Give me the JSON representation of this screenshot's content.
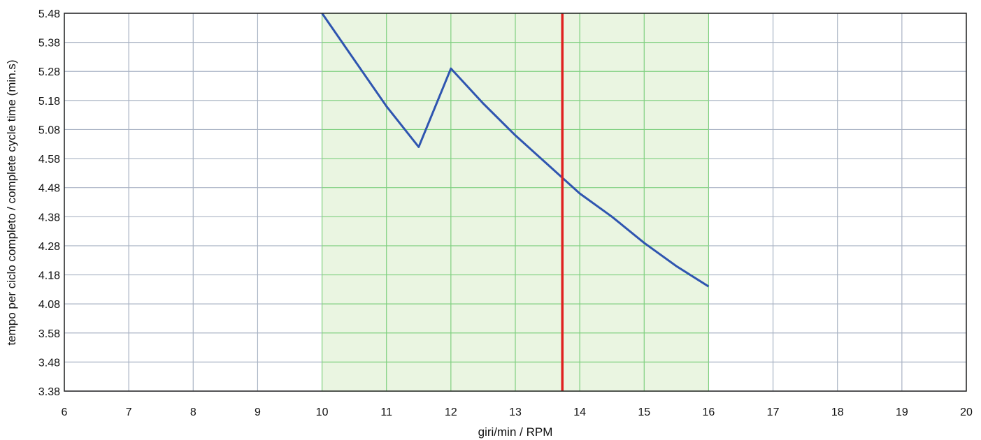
{
  "chart_data": {
    "type": "line",
    "title": "",
    "xlabel": "giri/min / RPM",
    "ylabel": "tempo per ciclo completo / complete cycle time (min.s)",
    "xlim": [
      6,
      20
    ],
    "x_ticks": [
      "6",
      "7",
      "8",
      "9",
      "10",
      "11",
      "12",
      "13",
      "14",
      "15",
      "16",
      "17",
      "18",
      "19",
      "20"
    ],
    "y_ticks": [
      "3.38",
      "3.48",
      "3.58",
      "4.08",
      "4.18",
      "4.28",
      "4.38",
      "4.48",
      "4.58",
      "5.08",
      "5.18",
      "5.28",
      "5.38",
      "5.48"
    ],
    "grid": true,
    "highlight_band": {
      "x_from": 10,
      "x_to": 16,
      "color": "#eaf5e1",
      "grid_color": "#7fcf7f"
    },
    "marker_line": {
      "x": 13.73,
      "color": "#e02020"
    },
    "series": [
      {
        "color": "#2f55b0",
        "points": [
          {
            "x": 10.0,
            "y": 5.48
          },
          {
            "x": 10.5,
            "y": 5.315
          },
          {
            "x": 11.0,
            "y": 5.16
          },
          {
            "x": 11.5,
            "y": 5.02
          },
          {
            "x": 12.0,
            "y": 4.89
          },
          {
            "x": 12.5,
            "y": 4.77
          },
          {
            "x": 13.0,
            "y": 4.66
          },
          {
            "x": 13.5,
            "y": 4.56
          },
          {
            "x": 14.0,
            "y": 4.465
          },
          {
            "x": 14.5,
            "y": 4.375
          },
          {
            "x": 15.0,
            "y": 4.29
          },
          {
            "x": 15.5,
            "y": 4.215
          },
          {
            "x": 16.0,
            "y": 4.14
          }
        ]
      }
    ],
    "colors": {
      "grid": "#a9b3c4",
      "axis": "#222222",
      "background": "#ffffff"
    }
  }
}
